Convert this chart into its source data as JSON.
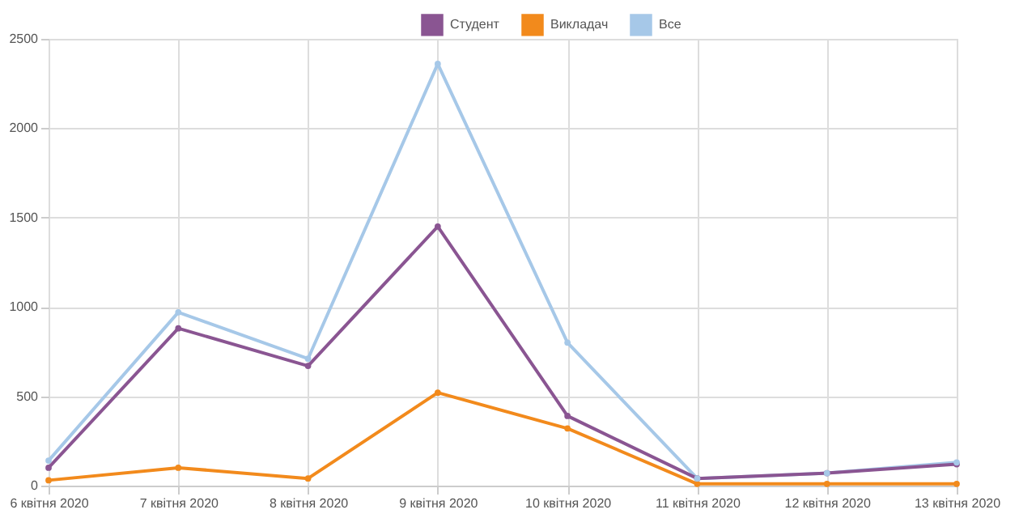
{
  "chart_data": {
    "type": "line",
    "categories": [
      "6 квітня 2020",
      "7 квітня 2020",
      "8 квітня 2020",
      "9 квітня 2020",
      "10 квітня 2020",
      "11 квітня 2020",
      "12 квітня 2020",
      "13 квітня 2020"
    ],
    "series": [
      {
        "name": "Студент",
        "color": "#8a5592",
        "values": [
          100,
          880,
          670,
          1450,
          390,
          40,
          70,
          120
        ]
      },
      {
        "name": "Викладач",
        "color": "#f28a1c",
        "values": [
          30,
          100,
          40,
          520,
          320,
          10,
          10,
          10
        ]
      },
      {
        "name": "Все",
        "color": "#a6c8e8",
        "values": [
          140,
          970,
          710,
          2360,
          800,
          40,
          70,
          130
        ]
      }
    ],
    "ylim": [
      0,
      2500
    ],
    "yticks": [
      0,
      500,
      1000,
      1500,
      2000,
      2500
    ],
    "grid": true,
    "legend": "top",
    "marker": "circle",
    "line_style": "solid"
  }
}
